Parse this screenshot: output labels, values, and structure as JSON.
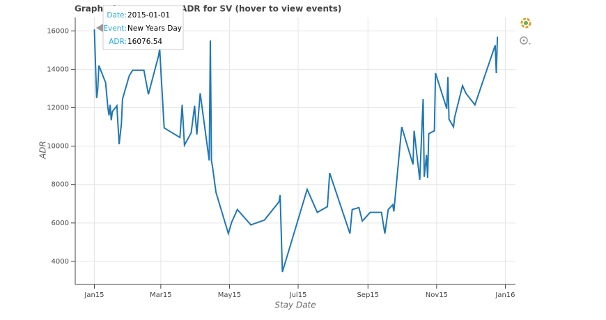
{
  "chart_data": {
    "type": "line",
    "title": "Graph of Stay Date vs ADR for SV (hover to view events)",
    "x_label": "Stay Date",
    "y_label": "ADR",
    "x": [
      "2015-01-01",
      "2015-01-03",
      "2015-01-04",
      "2015-01-05",
      "2015-01-11",
      "2015-01-13",
      "2015-01-14",
      "2015-01-15",
      "2015-01-16",
      "2015-01-17",
      "2015-01-21",
      "2015-01-23",
      "2015-01-25",
      "2015-01-26",
      "2015-02-01",
      "2015-02-04",
      "2015-02-14",
      "2015-02-18",
      "2015-02-27",
      "2015-02-28",
      "2015-03-04",
      "2015-03-18",
      "2015-03-20",
      "2015-03-22",
      "2015-03-28",
      "2015-03-31",
      "2015-04-02",
      "2015-04-05",
      "2015-04-13",
      "2015-04-14",
      "2015-04-15",
      "2015-04-16",
      "2015-04-19",
      "2015-04-30",
      "2015-05-03",
      "2015-05-08",
      "2015-05-20",
      "2015-06-01",
      "2015-06-14",
      "2015-06-15",
      "2015-06-17",
      "2015-07-09",
      "2015-07-18",
      "2015-07-27",
      "2015-07-29",
      "2015-08-16",
      "2015-08-18",
      "2015-08-24",
      "2015-08-27",
      "2015-09-03",
      "2015-09-13",
      "2015-09-16",
      "2015-09-19",
      "2015-09-23",
      "2015-09-24",
      "2015-10-01",
      "2015-10-11",
      "2015-10-12",
      "2015-10-17",
      "2015-10-20",
      "2015-10-21",
      "2015-10-23",
      "2015-10-24",
      "2015-10-25",
      "2015-10-30",
      "2015-10-31",
      "2015-11-10",
      "2015-11-11",
      "2015-11-12",
      "2015-11-16",
      "2015-11-17",
      "2015-11-24",
      "2015-11-27",
      "2015-12-05",
      "2015-12-23",
      "2015-12-24",
      "2015-12-25"
    ],
    "series": [
      {
        "name": "ADR",
        "color": "#1f77b4",
        "values": [
          16076.54,
          12500,
          12950,
          14200,
          13300,
          12000,
          11600,
          12150,
          11350,
          11800,
          12100,
          10100,
          11150,
          12450,
          13670,
          13950,
          13950,
          12700,
          14700,
          15050,
          10950,
          10450,
          12150,
          10050,
          10700,
          12100,
          10600,
          12750,
          9250,
          15500,
          9250,
          8900,
          7600,
          5450,
          6050,
          6700,
          5900,
          6150,
          7100,
          7450,
          3450,
          7750,
          6550,
          6850,
          8600,
          5450,
          6700,
          6800,
          6100,
          6550,
          6550,
          5450,
          6700,
          6950,
          6600,
          11000,
          9050,
          10800,
          8250,
          12450,
          8400,
          9550,
          8350,
          10650,
          10800,
          13800,
          11950,
          13600,
          11400,
          11000,
          11500,
          13150,
          12750,
          12150,
          15250,
          13800,
          15700
        ]
      }
    ],
    "xlim": [
      "2014-12-15",
      "2016-01-10"
    ],
    "xticks": [
      {
        "value": "2015-01-01",
        "label": "Jan15"
      },
      {
        "value": "2015-03-01",
        "label": "Mar15"
      },
      {
        "value": "2015-05-01",
        "label": "May15"
      },
      {
        "value": "2015-07-01",
        "label": "Jul15"
      },
      {
        "value": "2015-09-01",
        "label": "Sep15"
      },
      {
        "value": "2015-11-01",
        "label": "Nov15"
      },
      {
        "value": "2016-01-01",
        "label": "Jan16"
      }
    ],
    "ylim": [
      2800,
      16700
    ],
    "yticks": [
      4000,
      6000,
      8000,
      10000,
      12000,
      14000,
      16000
    ],
    "grid": true,
    "tooltip": {
      "rows": [
        {
          "label": "Date:",
          "value": "2015-01-01"
        },
        {
          "label": "Event:",
          "value": "New Years Day"
        },
        {
          "label": "ADR:",
          "value": "16076.54"
        }
      ]
    }
  }
}
